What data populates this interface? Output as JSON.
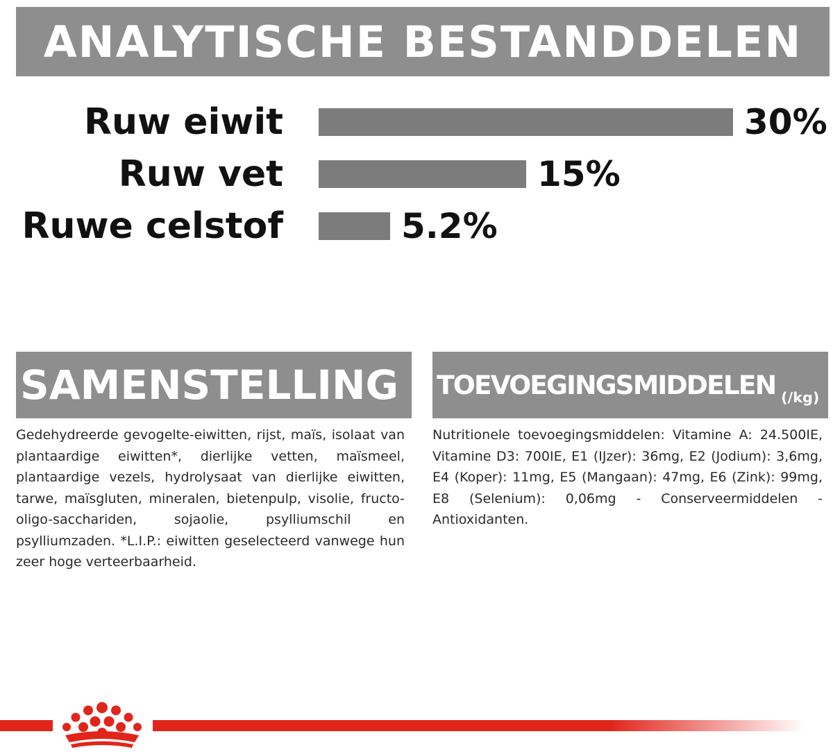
{
  "analytisch": {
    "title": "ANALYTISCHE BESTANDDELEN",
    "items": [
      {
        "label": "Ruw eiwit",
        "value": 30,
        "display": "30%"
      },
      {
        "label": "Ruw vet",
        "value": 15,
        "display": "15%"
      },
      {
        "label": "Ruwe celstof",
        "value": 5.2,
        "display": "5.2%"
      }
    ],
    "bar_color": "#7c7c7c"
  },
  "samenstelling": {
    "title": "SAMENSTELLING",
    "text": "Gedehydreerde gevogelte-eiwitten, rijst, maïs, isolaat van plantaardige eiwitten*, dierlijke vetten, maïsmeel, plantaardige vezels, hydrolysaat van dierlijke eiwitten, tarwe, maïsgluten, mineralen, bietenpulp, visolie, fructo-oligo-sacchariden, sojaolie, psylliumschil en psylliumzaden. *L.I.P.: eiwitten geselecteerd vanwege hun zeer hoge verteerbaarheid."
  },
  "toevoegingsmiddelen": {
    "title": "TOEVOEGINGSMIDDELEN",
    "unit": "(/kg)",
    "text": "Nutritionele toevoegingsmiddelen: Vitamine A: 24.500IE, Vitamine D3: 700IE, E1 (IJzer): 36mg, E2 (Jodium): 3,6mg, E4 (Koper): 11mg, E5 (Mangaan): 47mg, E6 (Zink): 99mg, E8 (Selenium): 0,06mg - Conserveermiddelen - Antioxidanten."
  },
  "colors": {
    "banner": "#8e8e8e",
    "brand_red": "#e1251b"
  },
  "logo": {
    "icon": "crown-icon"
  }
}
